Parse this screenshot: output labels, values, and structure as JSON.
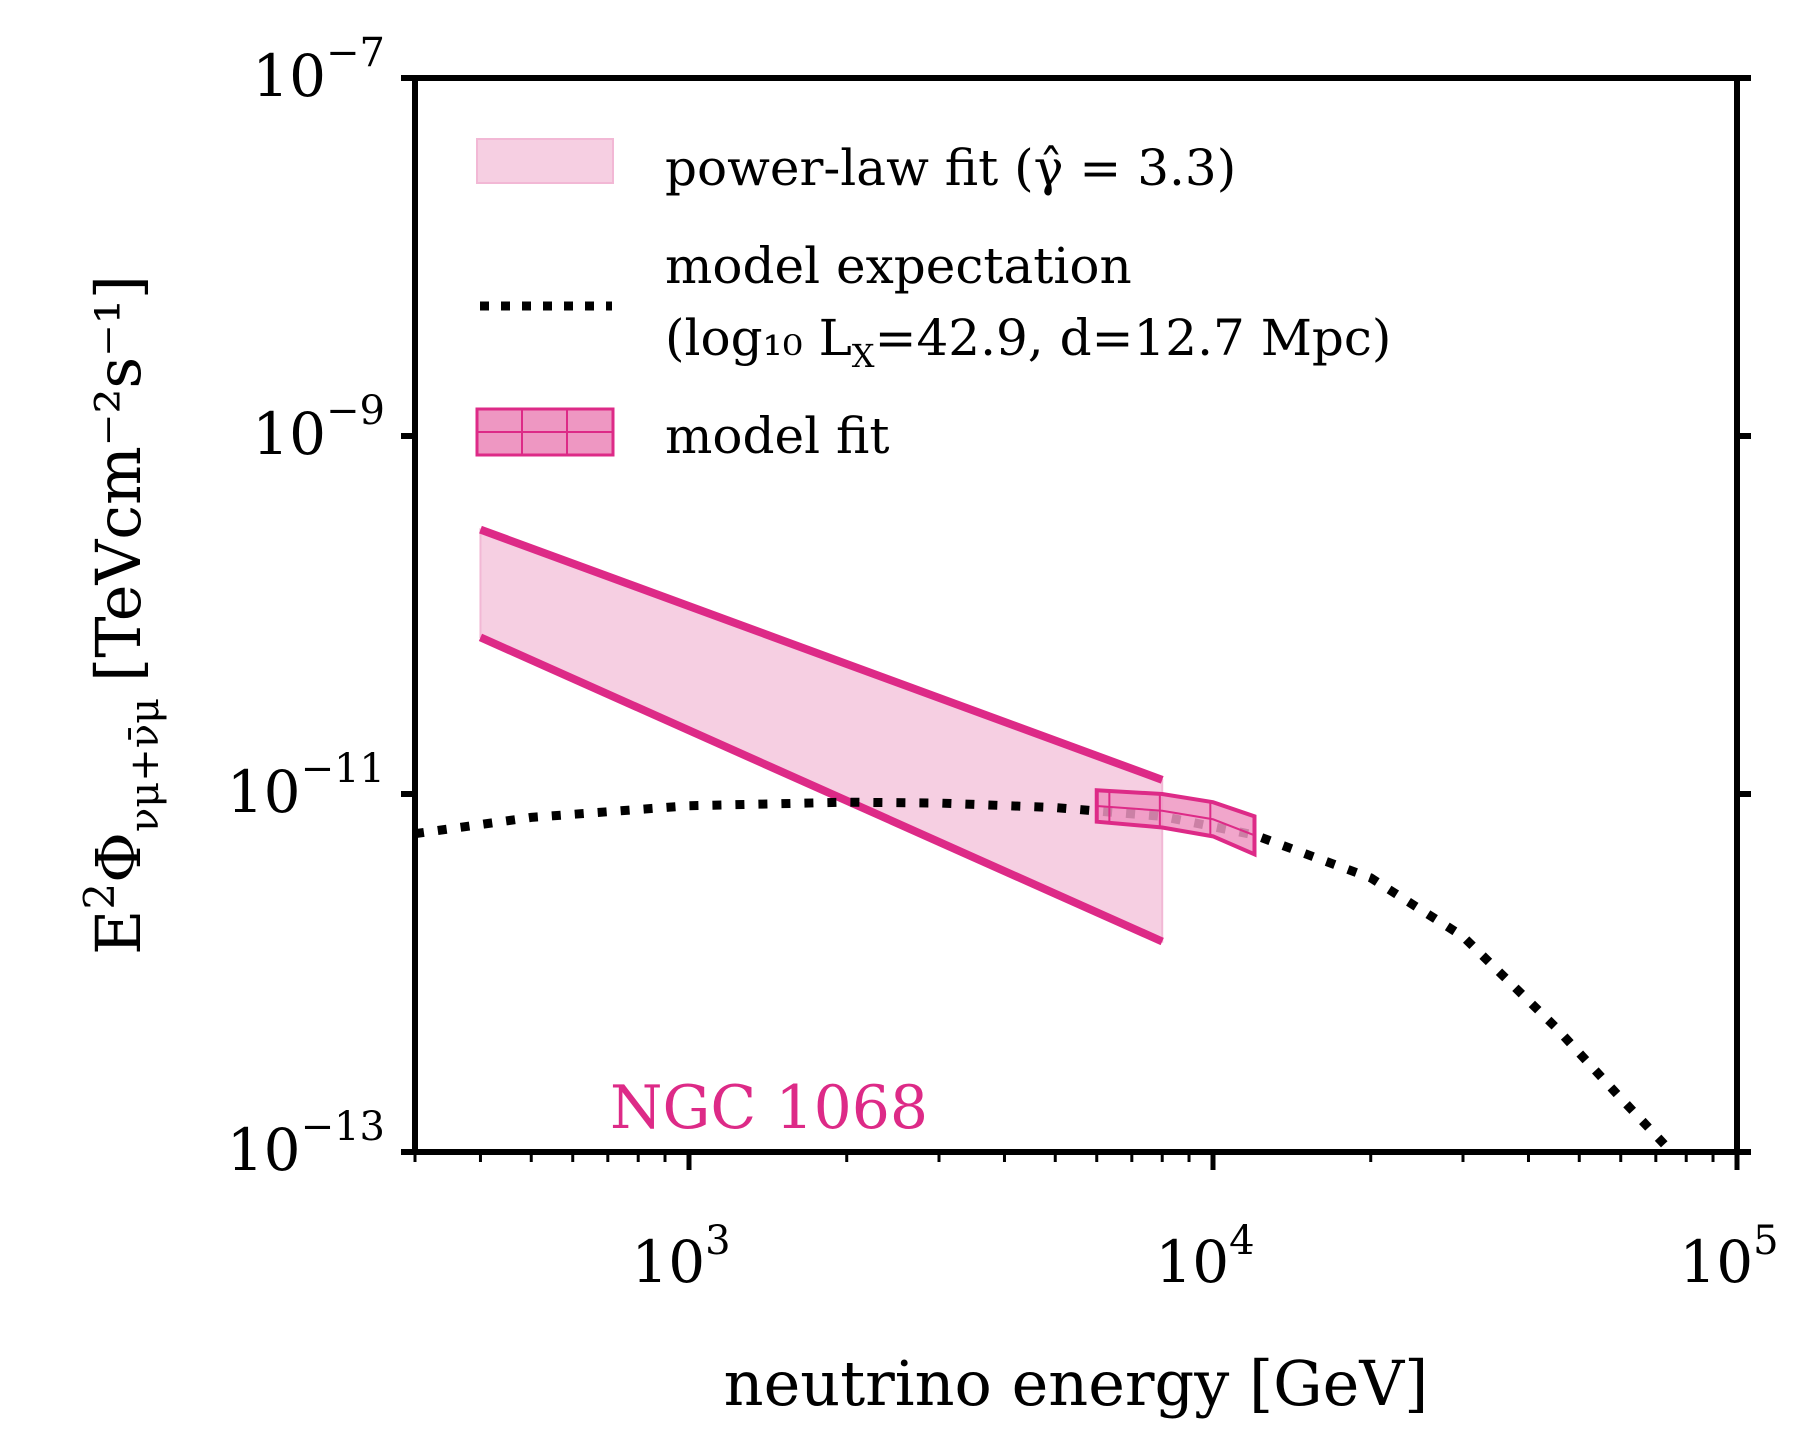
{
  "chart_data": {
    "type": "line",
    "xscale": "log",
    "yscale": "log",
    "xlim": [
      300,
      100000
    ],
    "ylim": [
      1e-13,
      1e-07
    ],
    "xlabel": "neutrino energy [GeV]",
    "ylabel": "E²Φνμ+ν̄μ [TeVcm⁻²s⁻¹]",
    "ylabel_parts": {
      "main": "E",
      "sup": "2",
      "phi": "Φ",
      "sub": "νμ+ν̄μ",
      "units": "[TeVcm⁻²s⁻¹]"
    },
    "xticks": [
      {
        "value": 1000,
        "base": "10",
        "exp": "3"
      },
      {
        "value": 10000,
        "base": "10",
        "exp": "4"
      },
      {
        "value": 100000,
        "base": "10",
        "exp": "5"
      }
    ],
    "yticks": [
      {
        "value": 1e-07,
        "base": "10",
        "exp": "−7"
      },
      {
        "value": 1e-09,
        "base": "10",
        "exp": "−9"
      },
      {
        "value": 1e-11,
        "base": "10",
        "exp": "−11"
      },
      {
        "value": 1e-13,
        "base": "10",
        "exp": "−13"
      }
    ],
    "series": [
      {
        "name": "power-law fit (γ̂ = 3.3)",
        "kind": "band",
        "color": "#dd2a87",
        "fill": "#f6cfe2",
        "x": [
          400,
          8000
        ],
        "upper": [
          3e-10,
          1.2e-11
        ],
        "lower": [
          7.5e-11,
          1.5e-12
        ]
      },
      {
        "name": "model expectation",
        "kind": "dotted-line",
        "color": "#000000",
        "x": [
          300,
          500,
          1000,
          2000,
          3000,
          5000,
          8000,
          12000,
          20000,
          30000,
          45000,
          60000,
          75000
        ],
        "y": [
          6e-12,
          7.4e-12,
          8.6e-12,
          9e-12,
          8.9e-12,
          8.4e-12,
          7.5e-12,
          5.9e-12,
          3.4e-12,
          1.6e-12,
          5e-13,
          2e-13,
          1e-13
        ]
      },
      {
        "name": "model fit",
        "kind": "hatched-band",
        "color": "#dd2a87",
        "fill": "#ee97c2",
        "x": [
          6000,
          8000,
          10000,
          12000
        ],
        "upper": [
          1.05e-11,
          1e-11,
          9e-12,
          7.5e-12
        ],
        "lower": [
          7e-12,
          6.5e-12,
          5.8e-12,
          4.6e-12
        ]
      }
    ],
    "legend": {
      "position": "top-left",
      "entries": [
        {
          "text": "power-law fit (γ̂ = 3.3)",
          "marker": "band"
        },
        {
          "text": "model expectation",
          "text2": "(log₁₀ L",
          "text2_sub": "X",
          "text2_rest": "=42.9, d=12.7 Mpc)",
          "marker": "dotted"
        },
        {
          "text": "model fit",
          "marker": "hatched"
        }
      ]
    },
    "annotation": {
      "text": "NGC 1068",
      "color": "#dd2a87",
      "position": "bottom-left"
    }
  }
}
